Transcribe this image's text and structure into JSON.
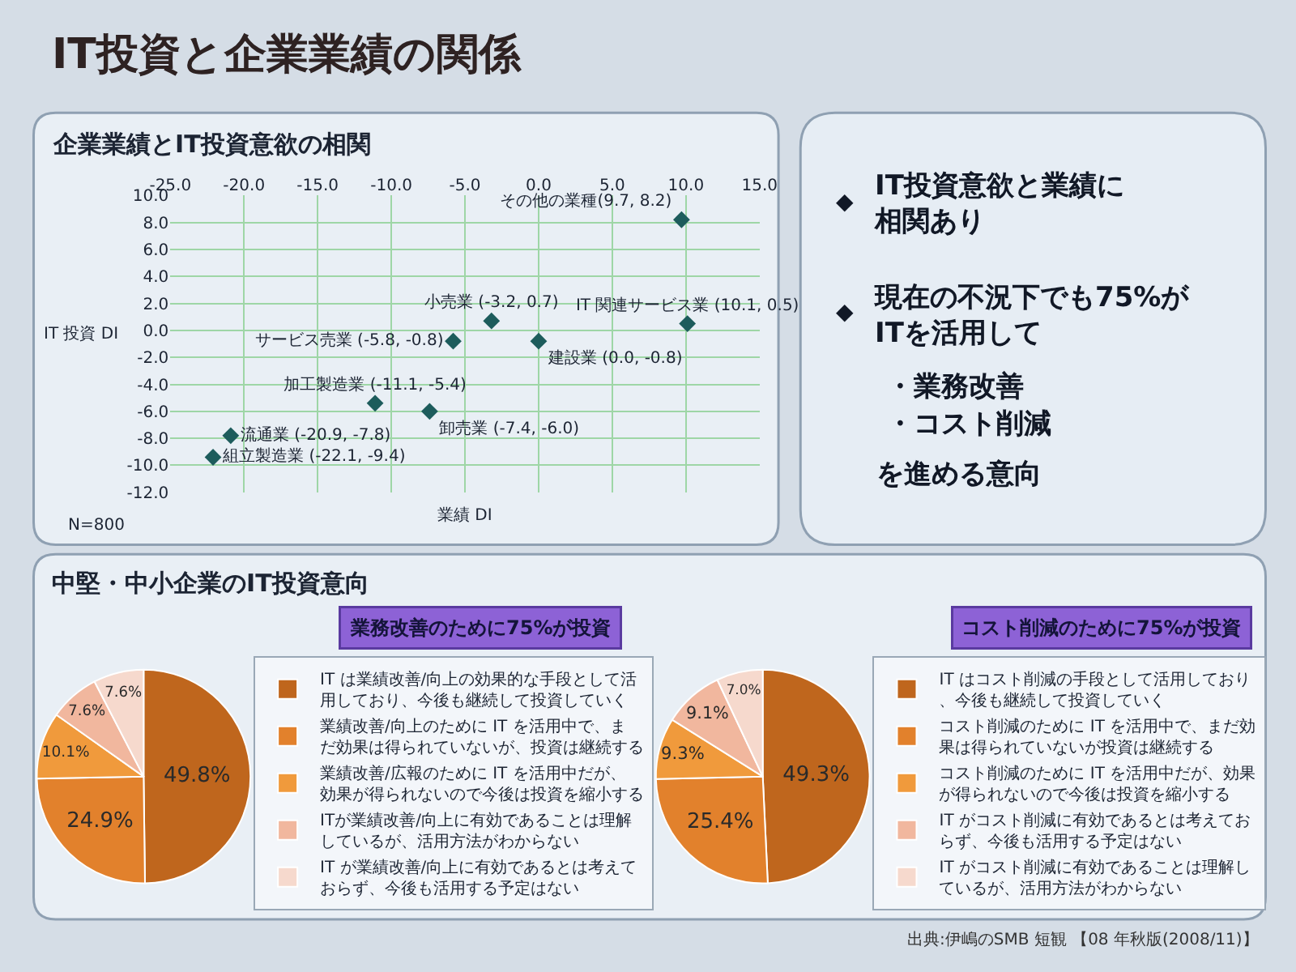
{
  "chart_data": [
    {
      "type": "scatter",
      "title": "IT投資と企業業績の関係",
      "subtitle": "企業業績とIT投資意欲の相関",
      "xlabel": "業績 DI",
      "ylabel": "IT 投資 DI",
      "x": [
        9.7,
        -3.2,
        10.1,
        -5.8,
        0.0,
        -11.1,
        -7.4,
        -20.9,
        -22.1
      ],
      "values": [
        8.2,
        0.7,
        0.5,
        -0.8,
        -0.8,
        -5.4,
        -6.0,
        -7.8,
        -9.4
      ],
      "value_labels": [
        "その他の業種(9.7, 8.2)",
        "小売業 (-3.2, 0.7)",
        "IT 関連サービス業 (10.1, 0.5)",
        "サービス売業 (-5.8, -0.8)",
        "建設業 (0.0, -0.8)",
        "加工製造業 (-11.1, -5.4)",
        "卸売業 (-7.4, -6.0)",
        "流通業 (-20.9, -7.8)",
        "組立製造業 (-22.1, -9.4)"
      ],
      "color": "#1d5c5c",
      "marker": "diamond",
      "xlim": [
        -25,
        15
      ],
      "xticks": [
        {
          "value": -25,
          "label": "-25.0"
        },
        {
          "value": -20,
          "label": "-20.0"
        },
        {
          "value": -15,
          "label": "-15.0"
        },
        {
          "value": -10,
          "label": "-10.0"
        },
        {
          "value": -5,
          "label": "-5.0"
        },
        {
          "value": 0,
          "label": "0.0"
        },
        {
          "value": 5,
          "label": "5.0"
        },
        {
          "value": 10,
          "label": "10.0"
        },
        {
          "value": 15,
          "label": "15.0"
        }
      ],
      "ylim": [
        -12,
        10
      ],
      "yticks": [
        {
          "value": 10,
          "label": "10.0"
        },
        {
          "value": 8,
          "label": "8.0"
        },
        {
          "value": 6,
          "label": "6.0"
        },
        {
          "value": 4,
          "label": "4.0"
        },
        {
          "value": 2,
          "label": "2.0"
        },
        {
          "value": 0,
          "label": "0.0"
        },
        {
          "value": -2,
          "label": "-2.0"
        },
        {
          "value": -4,
          "label": "-4.0"
        },
        {
          "value": -6,
          "label": "-6.0"
        },
        {
          "value": -8,
          "label": "-8.0"
        },
        {
          "value": -10,
          "label": "-10.0"
        },
        {
          "value": -12,
          "label": "-12.0"
        }
      ],
      "grid": true,
      "annotations": [
        "N=800"
      ]
    },
    {
      "type": "pie",
      "title": "中堅・中小企業のIT投資意向",
      "categories": [
        "IT は業績改善/向上の効果的な手段として活用しており、今後も継続して投資していく",
        "業績改善/向上のために IT を活用中で、まだ効果は得られていないが、投資は継続する",
        "業績改善/広報のために IT を活用中だが、効果が得られないので今後は投資を縮小する",
        "ITが業績改善/向上に有効であることは理解しているが、活用方法がわからない",
        "IT が業績改善/向上に有効であるとは考えておらず、今後も活用する予定はない"
      ],
      "values": [
        49.8,
        24.9,
        10.1,
        7.6,
        7.6
      ],
      "value_labels": [
        "49.8%",
        "24.9%",
        "10.1%",
        "7.6%",
        "7.6%"
      ],
      "colors": [
        "#bf661d",
        "#e2812c",
        "#f09a3c",
        "#f1b79e",
        "#f6d9cd"
      ],
      "legend": "right",
      "annotations": [
        "業務改善のために75%が投資"
      ]
    },
    {
      "type": "pie",
      "categories": [
        "IT はコスト削減の手段として活用しており、今後も継続して投資していく",
        "コスト削減のために IT を活用中で、まだ効果は得られていないが投資は継続する",
        "コスト削減のために IT を活用中だが、効果が得られないので今後は投資を縮小する",
        "IT がコスト削減に有効であるとは考えておらず、今後も活用する予定はない",
        "IT がコスト削減に有効であることは理解しているが、活用方法がわからない"
      ],
      "values": [
        49.3,
        25.4,
        9.3,
        9.1,
        7.0
      ],
      "value_labels": [
        "49.3%",
        "25.4%",
        "9.3%",
        "9.1%",
        "7.0%"
      ],
      "colors": [
        "#bf661d",
        "#e2812c",
        "#f09a3c",
        "#f1b79e",
        "#f6d9cd"
      ],
      "legend": "right",
      "annotations": [
        "コスト削減のために75%が投資",
        "出典:伊嶋のSMB 短観 【08 年秋版(2008/11)】"
      ]
    },
    {
      "type": "other",
      "annotations": [
        "◆",
        "IT投資意欲と業績に相関あり",
        "◆",
        "現在の不況下でも75%がITを活用して",
        "・業務改善",
        "・コスト削減",
        "を進める意向"
      ]
    }
  ]
}
